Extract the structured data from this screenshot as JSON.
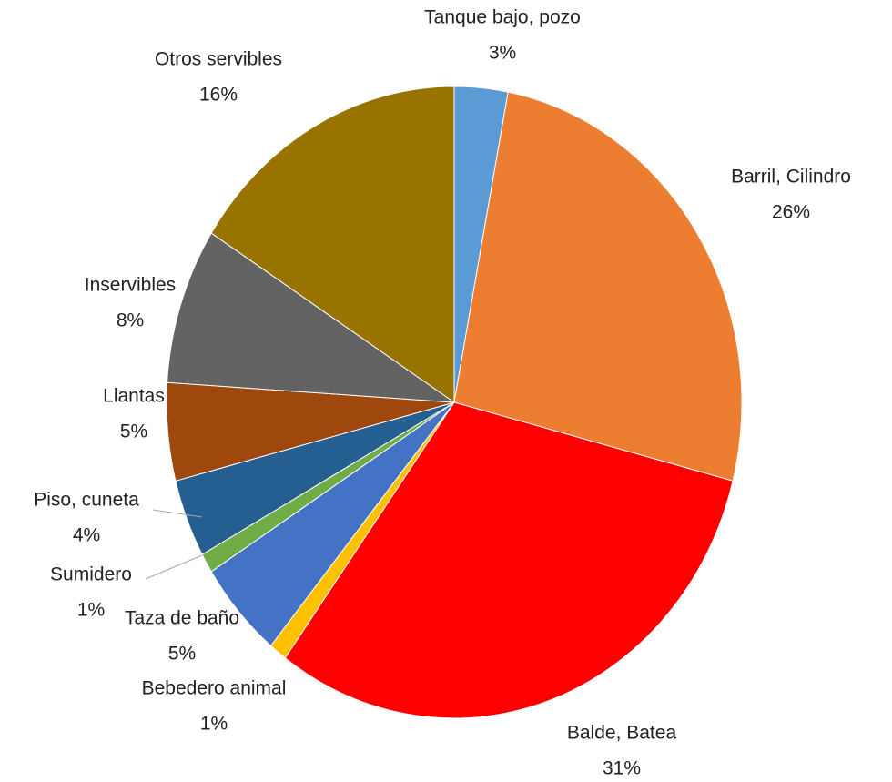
{
  "chart_data": {
    "type": "pie",
    "categories": [
      "Tanque bajo, pozo",
      "Barril, Cilindro",
      "Balde, Batea",
      "Bebedero animal",
      "Taza de baño",
      "Sumidero",
      "Piso, cuneta",
      "Llantas",
      "Inservibles",
      "Otros servibles"
    ],
    "values": [
      3,
      26,
      31,
      1,
      5,
      1,
      4,
      5,
      8,
      16
    ],
    "value_labels": [
      "3%",
      "26%",
      "31%",
      "1%",
      "5%",
      "1%",
      "4%",
      "5%",
      "8%",
      "16%"
    ],
    "colors": [
      "#5b9bd5",
      "#ed7d31",
      "#ff0000",
      "#ffc000",
      "#4472c4",
      "#70ad47",
      "#255e91",
      "#9e480e",
      "#636363",
      "#997300"
    ]
  }
}
